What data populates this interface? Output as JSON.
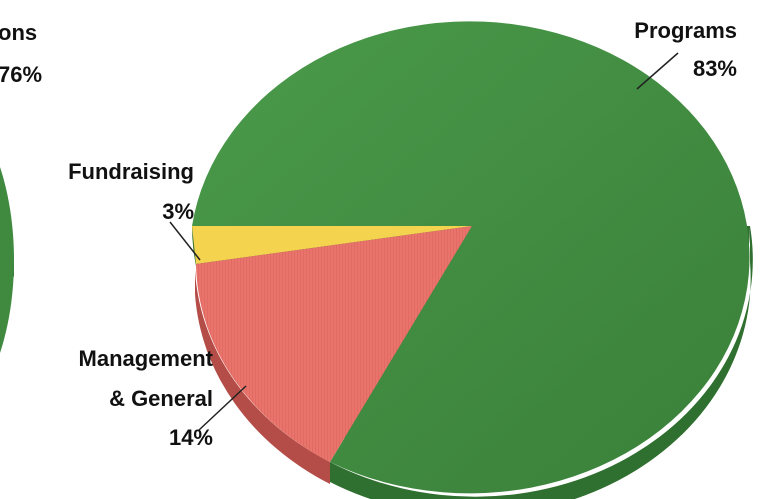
{
  "chart_data": [
    {
      "type": "pie",
      "title": "",
      "slices": [
        {
          "label": "ons",
          "value_label": "76%",
          "value": 76,
          "color": "#3f8a3f"
        }
      ]
    },
    {
      "type": "pie",
      "title": "",
      "slices": [
        {
          "label": "Programs",
          "value_label": "83%",
          "value": 83,
          "color": "#3f8a3f"
        },
        {
          "label": "Fundraising",
          "value_label": "3%",
          "value": 3,
          "color": "#f4d34f"
        },
        {
          "label": "Management & General",
          "label_lines": [
            "Management",
            "& General"
          ],
          "value_label": "14%",
          "value": 14,
          "color": "#e8746c"
        }
      ]
    }
  ]
}
